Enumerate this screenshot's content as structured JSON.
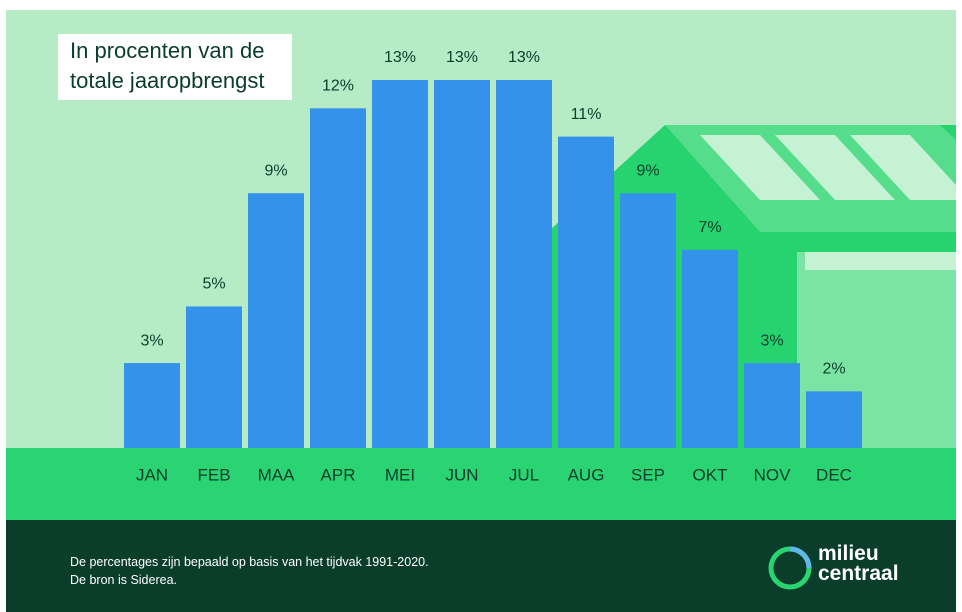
{
  "chart_data": {
    "type": "bar",
    "title": "In procenten van de totale jaaropbrengst",
    "categories": [
      "JAN",
      "FEB",
      "MAA",
      "APR",
      "MEI",
      "JUN",
      "JUL",
      "AUG",
      "SEP",
      "OKT",
      "NOV",
      "DEC"
    ],
    "values": [
      3,
      5,
      9,
      12,
      13,
      13,
      13,
      11,
      9,
      7,
      3,
      2
    ],
    "value_labels": [
      "3%",
      "5%",
      "9%",
      "12%",
      "13%",
      "13%",
      "13%",
      "11%",
      "9%",
      "7%",
      "3%",
      "2%"
    ],
    "color": "#3592ea",
    "notes": [
      "De percentages zijn bepaald op basis van het tijdvak 1991-2020.",
      "De bron is Siderea."
    ]
  },
  "logo": [
    "milieu",
    "centraal"
  ]
}
